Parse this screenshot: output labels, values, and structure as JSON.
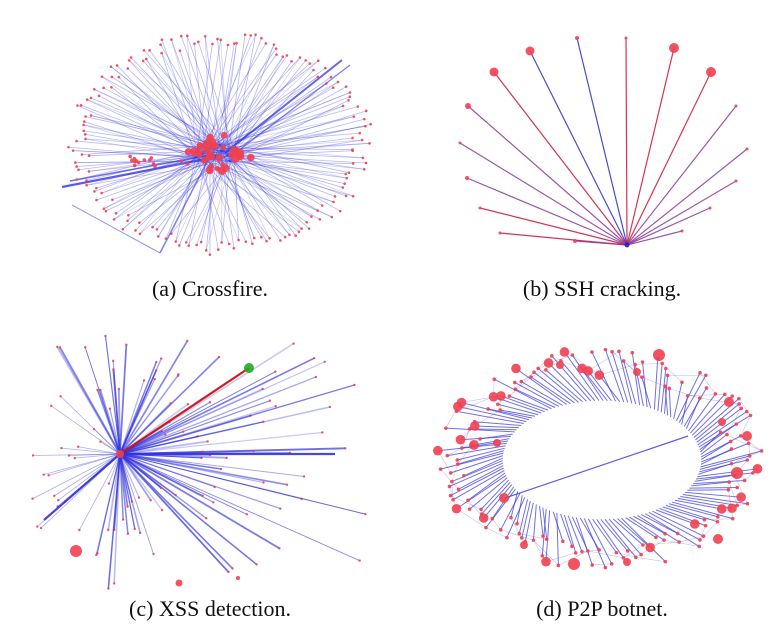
{
  "figure": {
    "panels": [
      {
        "id": "a",
        "caption": "(a) Crossfire.",
        "graph_type": "many-to-few attack graph"
      },
      {
        "id": "b",
        "caption": "(b) SSH cracking.",
        "graph_type": "fan-in star graph"
      },
      {
        "id": "c",
        "caption": "(c) XSS detection.",
        "graph_type": "fan-out star graph"
      },
      {
        "id": "d",
        "caption": "(d) P2P botnet.",
        "graph_type": "ring peer-to-peer graph"
      }
    ]
  },
  "colors": {
    "node": "#f04050",
    "edge_blue": "#3333dd",
    "edge_red": "#cc1111",
    "highlight_node": "#22aa22"
  }
}
